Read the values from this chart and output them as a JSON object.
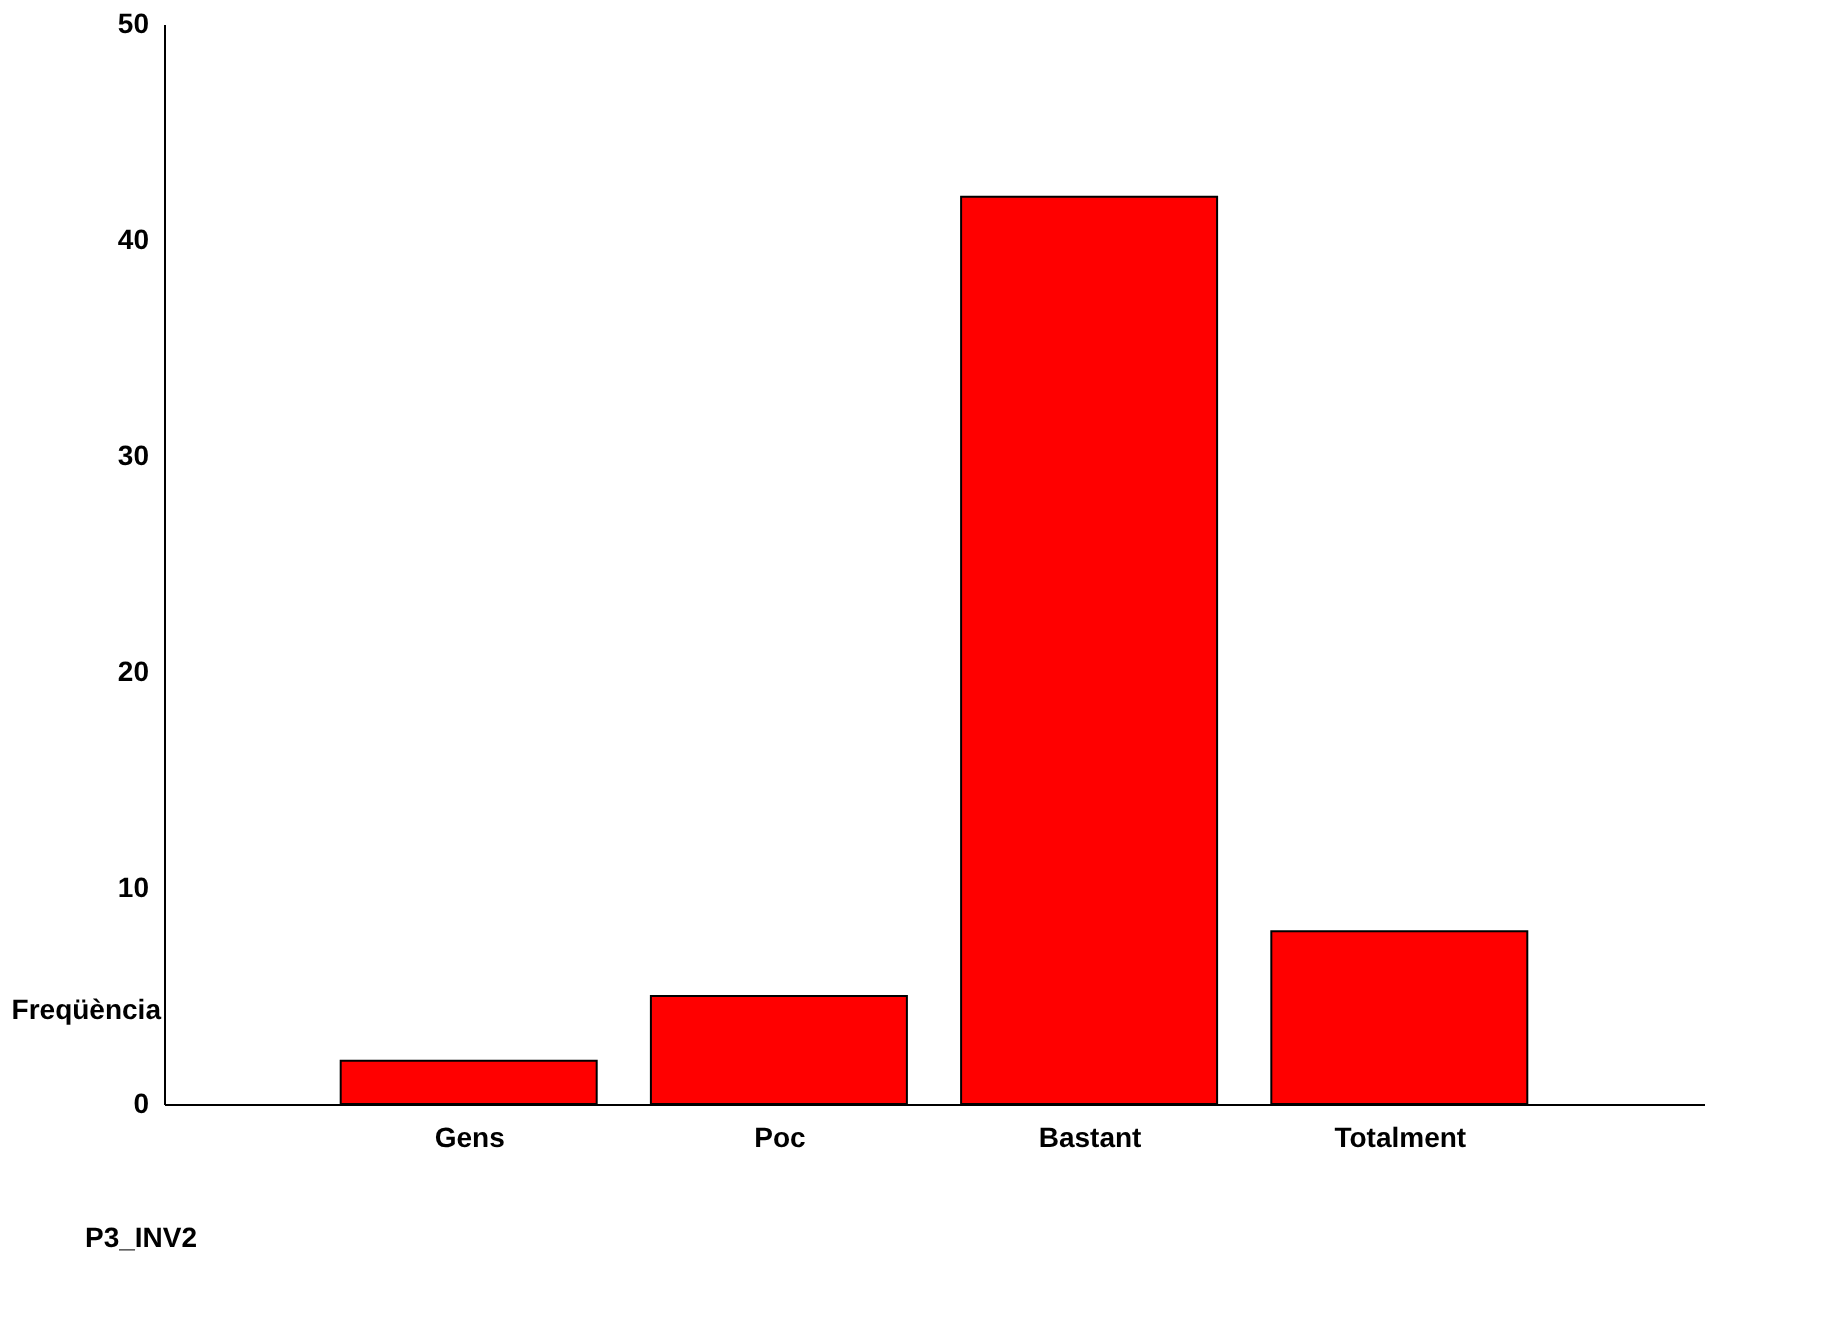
{
  "chart_data": {
    "type": "bar",
    "categories": [
      "Gens",
      "Poc",
      "Bastant",
      "Totalment"
    ],
    "values": [
      2,
      5,
      42,
      8
    ],
    "color": "#ff0000",
    "xlabel": "P3_INV2",
    "ylabel": "Freqüència",
    "ylim": [
      0,
      50
    ],
    "yticks": [
      0,
      10,
      20,
      30,
      40,
      50
    ],
    "grid": false
  }
}
